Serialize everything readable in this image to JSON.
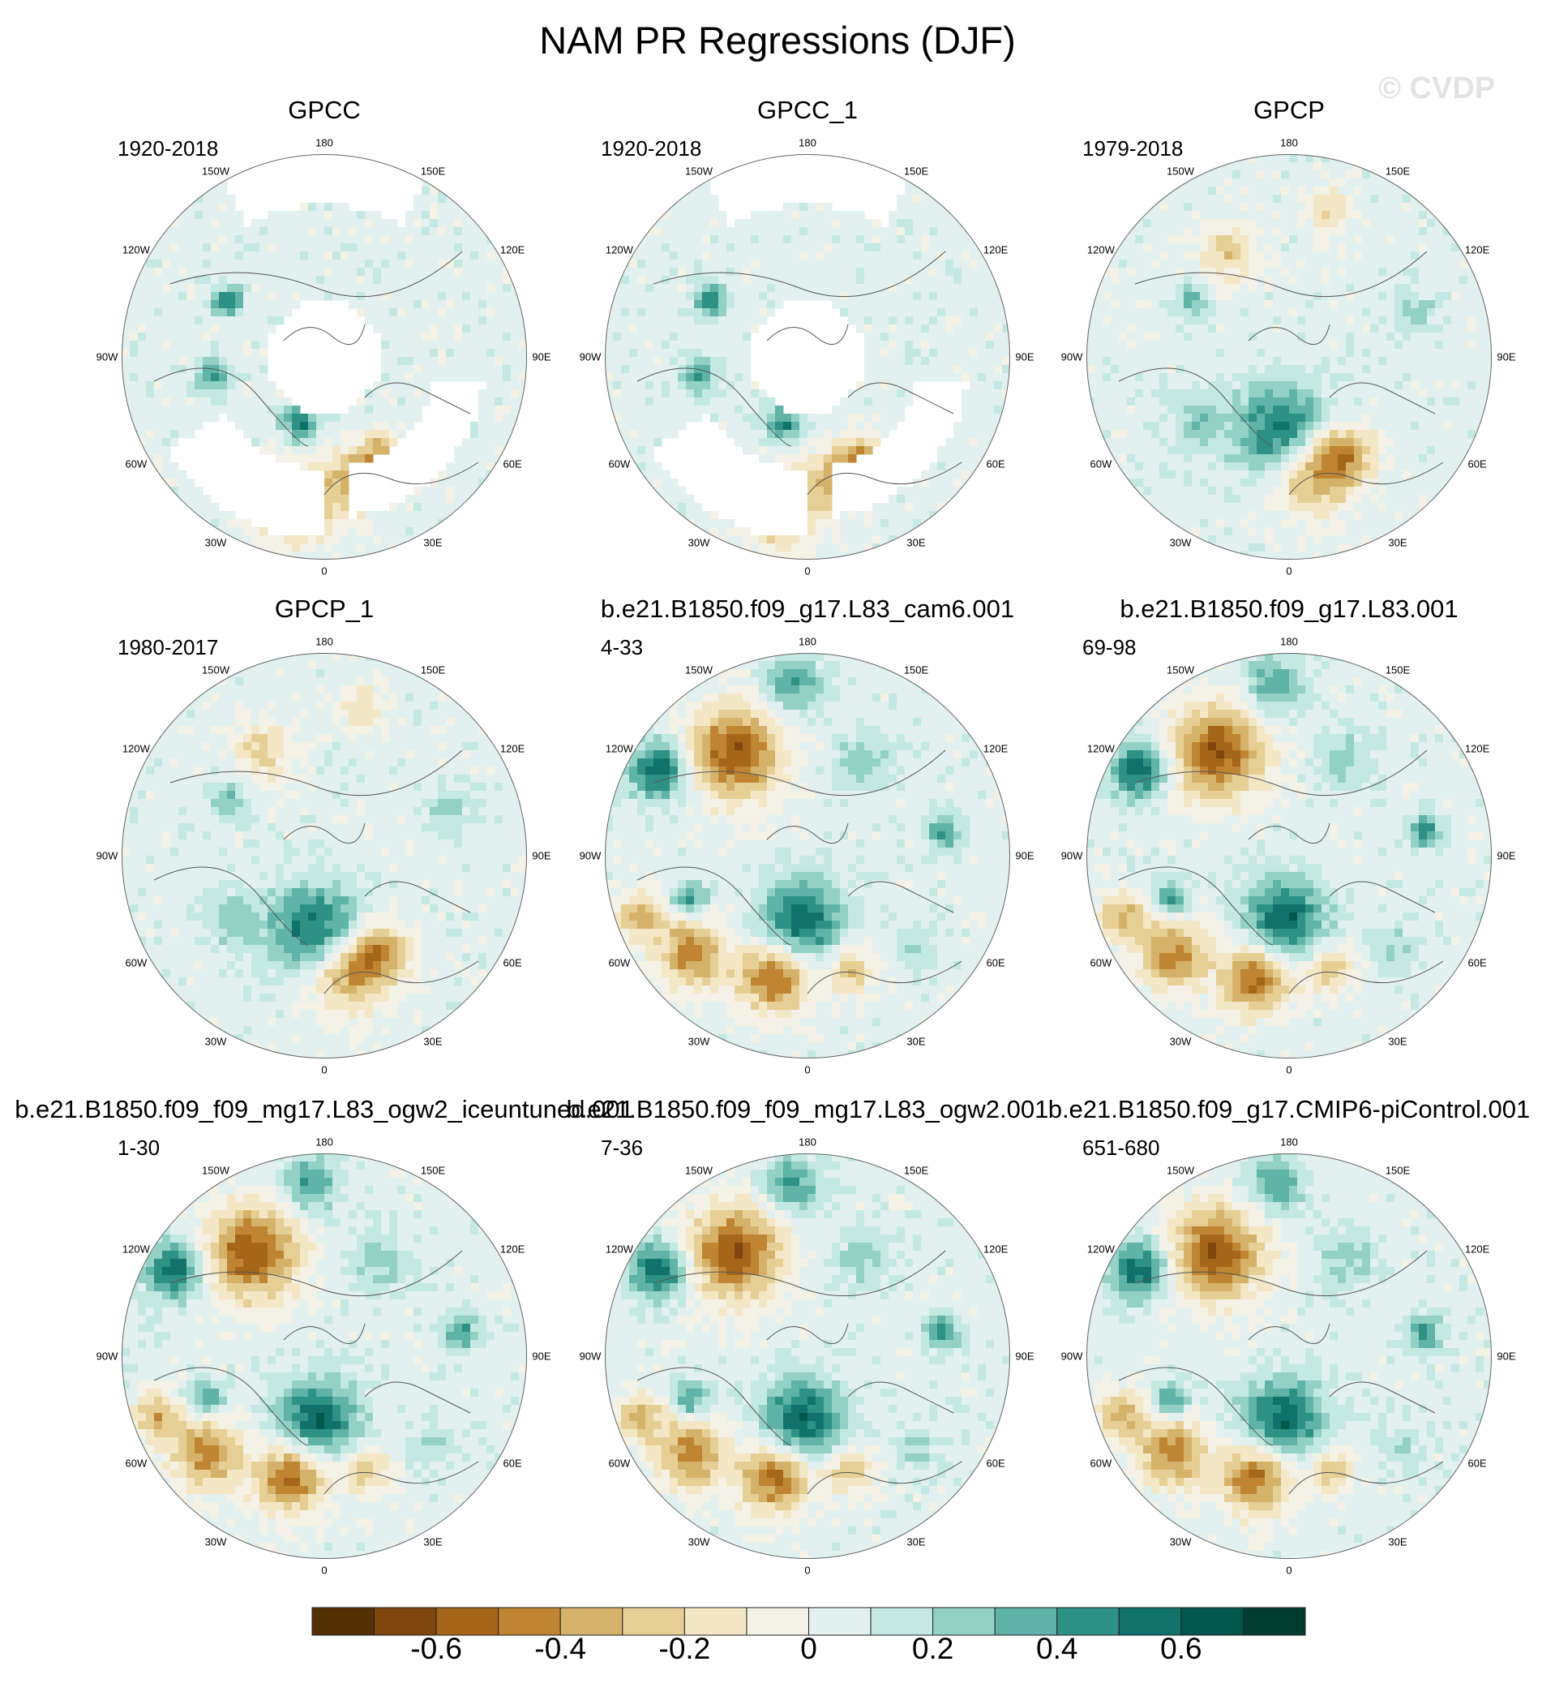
{
  "title": "NAM PR Regressions (DJF)",
  "watermark": "© CVDP",
  "lon_labels": [
    "180",
    "150E",
    "120E",
    "90E",
    "60E",
    "30E",
    "0",
    "30W",
    "60W",
    "90W",
    "120W",
    "150W"
  ],
  "chart_data": {
    "type": "polar-stereographic contour maps",
    "variable": "NAM PR Regressions",
    "season": "DJF",
    "panels": [
      {
        "name": "GPCC",
        "years": "1920-2018",
        "land_only": true,
        "pattern": "obs"
      },
      {
        "name": "GPCC_1",
        "years": "1920-2018",
        "land_only": true,
        "pattern": "obs"
      },
      {
        "name": "GPCP",
        "years": "1979-2018",
        "land_only": false,
        "pattern": "obs2"
      },
      {
        "name": "GPCP_1",
        "years": "1980-2017",
        "land_only": false,
        "pattern": "obs2"
      },
      {
        "name": "b.e21.B1850.f09_g17.L83_cam6.001",
        "years": "4-33",
        "land_only": false,
        "pattern": "model"
      },
      {
        "name": "b.e21.B1850.f09_g17.L83.001",
        "years": "69-98",
        "land_only": false,
        "pattern": "model"
      },
      {
        "name": "b.e21.B1850.f09_f09_mg17.L83_ogw2_iceuntuned.001",
        "years": "1-30",
        "land_only": false,
        "pattern": "model"
      },
      {
        "name": "b.e21.B1850.f09_f09_mg17.L83_ogw2.001",
        "years": "7-36",
        "land_only": false,
        "pattern": "model"
      },
      {
        "name": "b.e21.B1850.f09_g17.CMIP6-piControl.001",
        "years": "651-680",
        "land_only": false,
        "pattern": "model"
      }
    ],
    "colorbar": {
      "levels": [
        -0.7,
        -0.6,
        -0.5,
        -0.4,
        -0.3,
        -0.2,
        -0.1,
        0,
        0.1,
        0.2,
        0.3,
        0.4,
        0.5,
        0.6,
        0.7
      ],
      "tick_labels": [
        "-0.6",
        "-0.4",
        "-0.2",
        "0",
        "0.2",
        "0.4",
        "0.6"
      ],
      "tick_values": [
        -0.6,
        -0.4,
        -0.2,
        0,
        0.2,
        0.4,
        0.6
      ],
      "colors": [
        "#543005",
        "#7f470e",
        "#a6661a",
        "#c08532",
        "#d5b26a",
        "#e6cf94",
        "#f3e7c6",
        "#f4f1e6",
        "#e2f1ef",
        "#c4e8e2",
        "#93d1c5",
        "#5fb3a7",
        "#2e9186",
        "#10726a",
        "#01574c",
        "#003c30"
      ]
    }
  }
}
